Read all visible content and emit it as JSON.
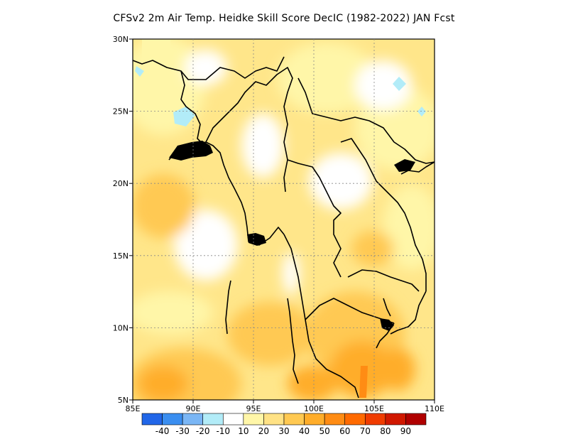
{
  "title": "CFSv2  2m Air Temp. Heidke Skill Score DecIC (1982-2022) JAN Fcst",
  "map": {
    "lon_range": [
      85,
      110
    ],
    "lat_range": [
      5,
      30
    ],
    "x_ticks": [
      {
        "value": 85,
        "label": "85E"
      },
      {
        "value": 90,
        "label": "90E"
      },
      {
        "value": 95,
        "label": "95E"
      },
      {
        "value": 100,
        "label": "100E"
      },
      {
        "value": 105,
        "label": "105E"
      },
      {
        "value": 110,
        "label": "110E"
      }
    ],
    "y_ticks": [
      {
        "value": 5,
        "label": "5N"
      },
      {
        "value": 10,
        "label": "10N"
      },
      {
        "value": 15,
        "label": "15N"
      },
      {
        "value": 20,
        "label": "20N"
      },
      {
        "value": 25,
        "label": "25N"
      },
      {
        "value": 30,
        "label": "30N"
      }
    ],
    "grid": true
  },
  "colorbar": {
    "colors": [
      "#2166e8",
      "#3a8ef0",
      "#7ab6f5",
      "#b2ecf8",
      "#ffffff",
      "#fff6a8",
      "#ffe285",
      "#ffc952",
      "#ffad2a",
      "#ff8c14",
      "#ff6a00",
      "#f03c00",
      "#d01800",
      "#b00000"
    ],
    "labels": [
      "-40",
      "-30",
      "-20",
      "-10",
      "10",
      "20",
      "30",
      "40",
      "50",
      "60",
      "70",
      "80",
      "90"
    ]
  }
}
